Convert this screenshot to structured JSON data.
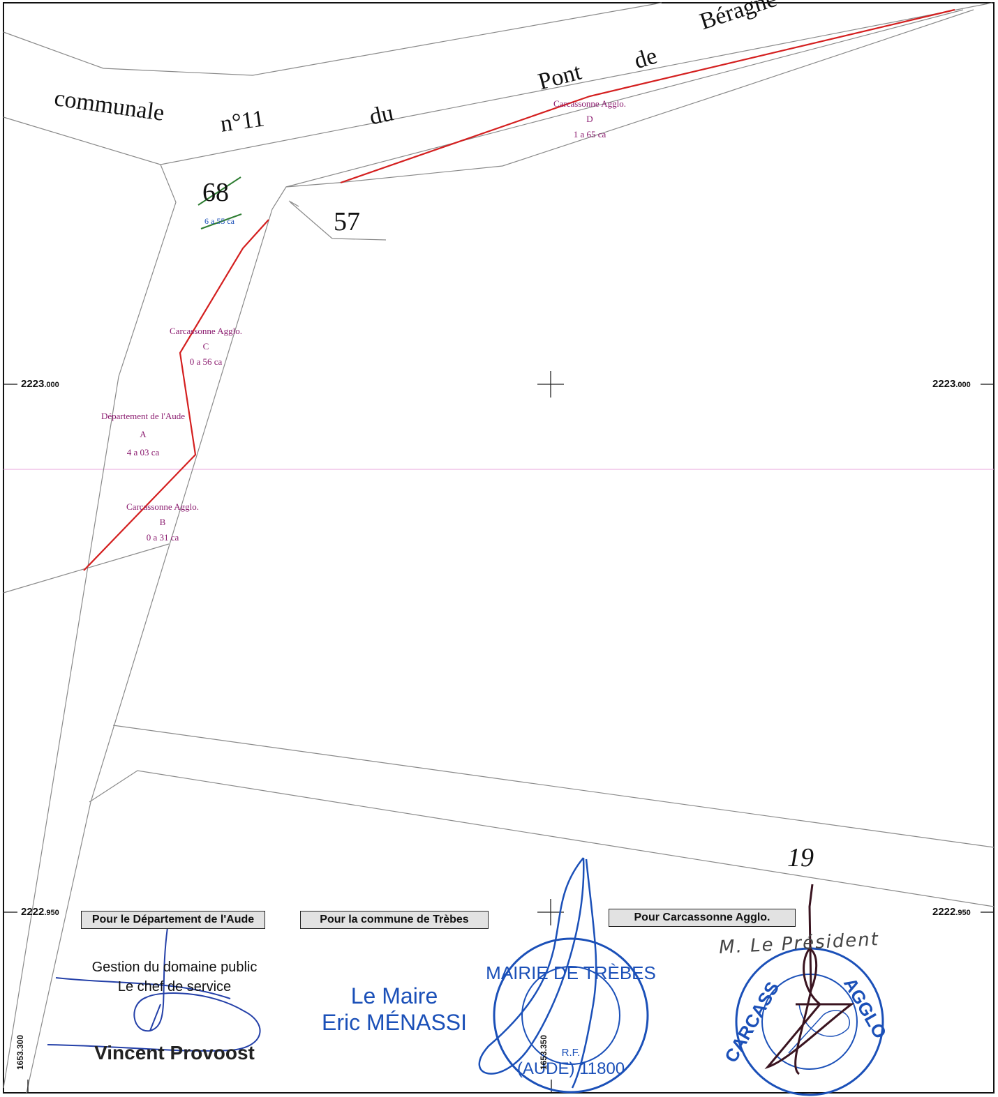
{
  "road_name_words": [
    "communale",
    "n°11",
    "du",
    "Pont",
    "de",
    "Béragne"
  ],
  "parcels": {
    "p68": {
      "number": "68",
      "area": "6 a 55 ca"
    },
    "p57": {
      "number": "57"
    },
    "p19": {
      "number": "19"
    }
  },
  "lots": {
    "A": {
      "owner": "Département de l'Aude",
      "letter": "A",
      "area": "4 a 03 ca"
    },
    "B": {
      "owner": "Carcassonne Agglo.",
      "letter": "B",
      "area": "0 a 31 ca"
    },
    "C": {
      "owner": "Carcassonne Agglo.",
      "letter": "C",
      "area": "0 a 56 ca"
    },
    "D": {
      "owner": "Carcassonne Agglo.",
      "letter": "D",
      "area": "1 a 65 ca"
    }
  },
  "grid_coords": {
    "y1_left": {
      "main": "2223",
      "frac": ".000"
    },
    "y1_right": {
      "main": "2223",
      "frac": ".000"
    },
    "y2_left": {
      "main": "2222",
      "frac": ".950"
    },
    "y2_right": {
      "main": "2222",
      "frac": ".950"
    },
    "x1": "1653.300",
    "x2": "1653.350"
  },
  "signatures": {
    "departement": {
      "box_label": "Pour le Département de l'Aude",
      "line1": "Gestion du domaine public",
      "line2": "Le chef de service",
      "name": "Vincent Provoost"
    },
    "commune": {
      "box_label": "Pour la commune de Trèbes",
      "line1": "Le Maire",
      "line2": "Eric MÉNASSI",
      "stamp_ring": "MAIRIE DE TRÈBES",
      "stamp_bottom": "(AUDE) 11800",
      "stamp_center": "R.F."
    },
    "agglo": {
      "box_label": "Pour Carcassonne Agglo.",
      "handwritten": "M. Le Président",
      "stamp_left": "CARCASS",
      "stamp_right": "AGGLO"
    }
  },
  "colors": {
    "boundary_line": "#d41f1f",
    "parcel_line": "#8a8a8a",
    "lot_label": "#8a1a6e",
    "stamp_blue": "#1b50b8",
    "grid_pink": "#e8a6de",
    "strike_green": "#2e7d32",
    "signature_dark": "#3a1420"
  }
}
